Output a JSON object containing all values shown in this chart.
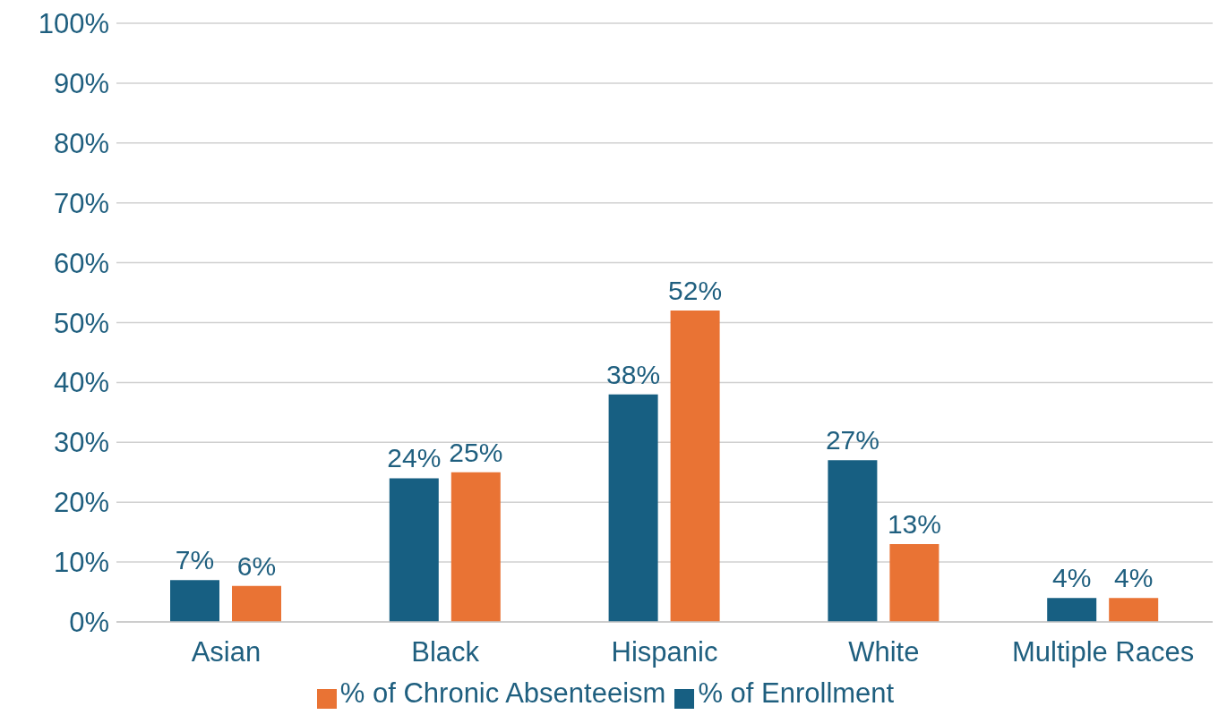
{
  "chart_data": {
    "type": "bar",
    "categories": [
      "Asian",
      "Black",
      "Hispanic",
      "White",
      "Multiple Races"
    ],
    "series": [
      {
        "name": "% of Enrollment",
        "color": "#175f82",
        "values": [
          7,
          24,
          38,
          27,
          4
        ],
        "value_labels": [
          "7%",
          "24%",
          "38%",
          "27%",
          "4%"
        ]
      },
      {
        "name": "% of Chronic Absenteeism",
        "color": "#e97334",
        "values": [
          6,
          25,
          52,
          13,
          4
        ],
        "value_labels": [
          "6%",
          "25%",
          "52%",
          "13%",
          "4%"
        ]
      }
    ],
    "ylim": [
      0,
      100
    ],
    "yticks": [
      {
        "value": 0,
        "label": "0%"
      },
      {
        "value": 10,
        "label": "10%"
      },
      {
        "value": 20,
        "label": "20%"
      },
      {
        "value": 30,
        "label": "30%"
      },
      {
        "value": 40,
        "label": "40%"
      },
      {
        "value": 50,
        "label": "50%"
      },
      {
        "value": 60,
        "label": "60%"
      },
      {
        "value": 70,
        "label": "70%"
      },
      {
        "value": 80,
        "label": "80%"
      },
      {
        "value": 90,
        "label": "90%"
      },
      {
        "value": 100,
        "label": "100%"
      }
    ],
    "grid": "y",
    "legend": "bottom"
  }
}
